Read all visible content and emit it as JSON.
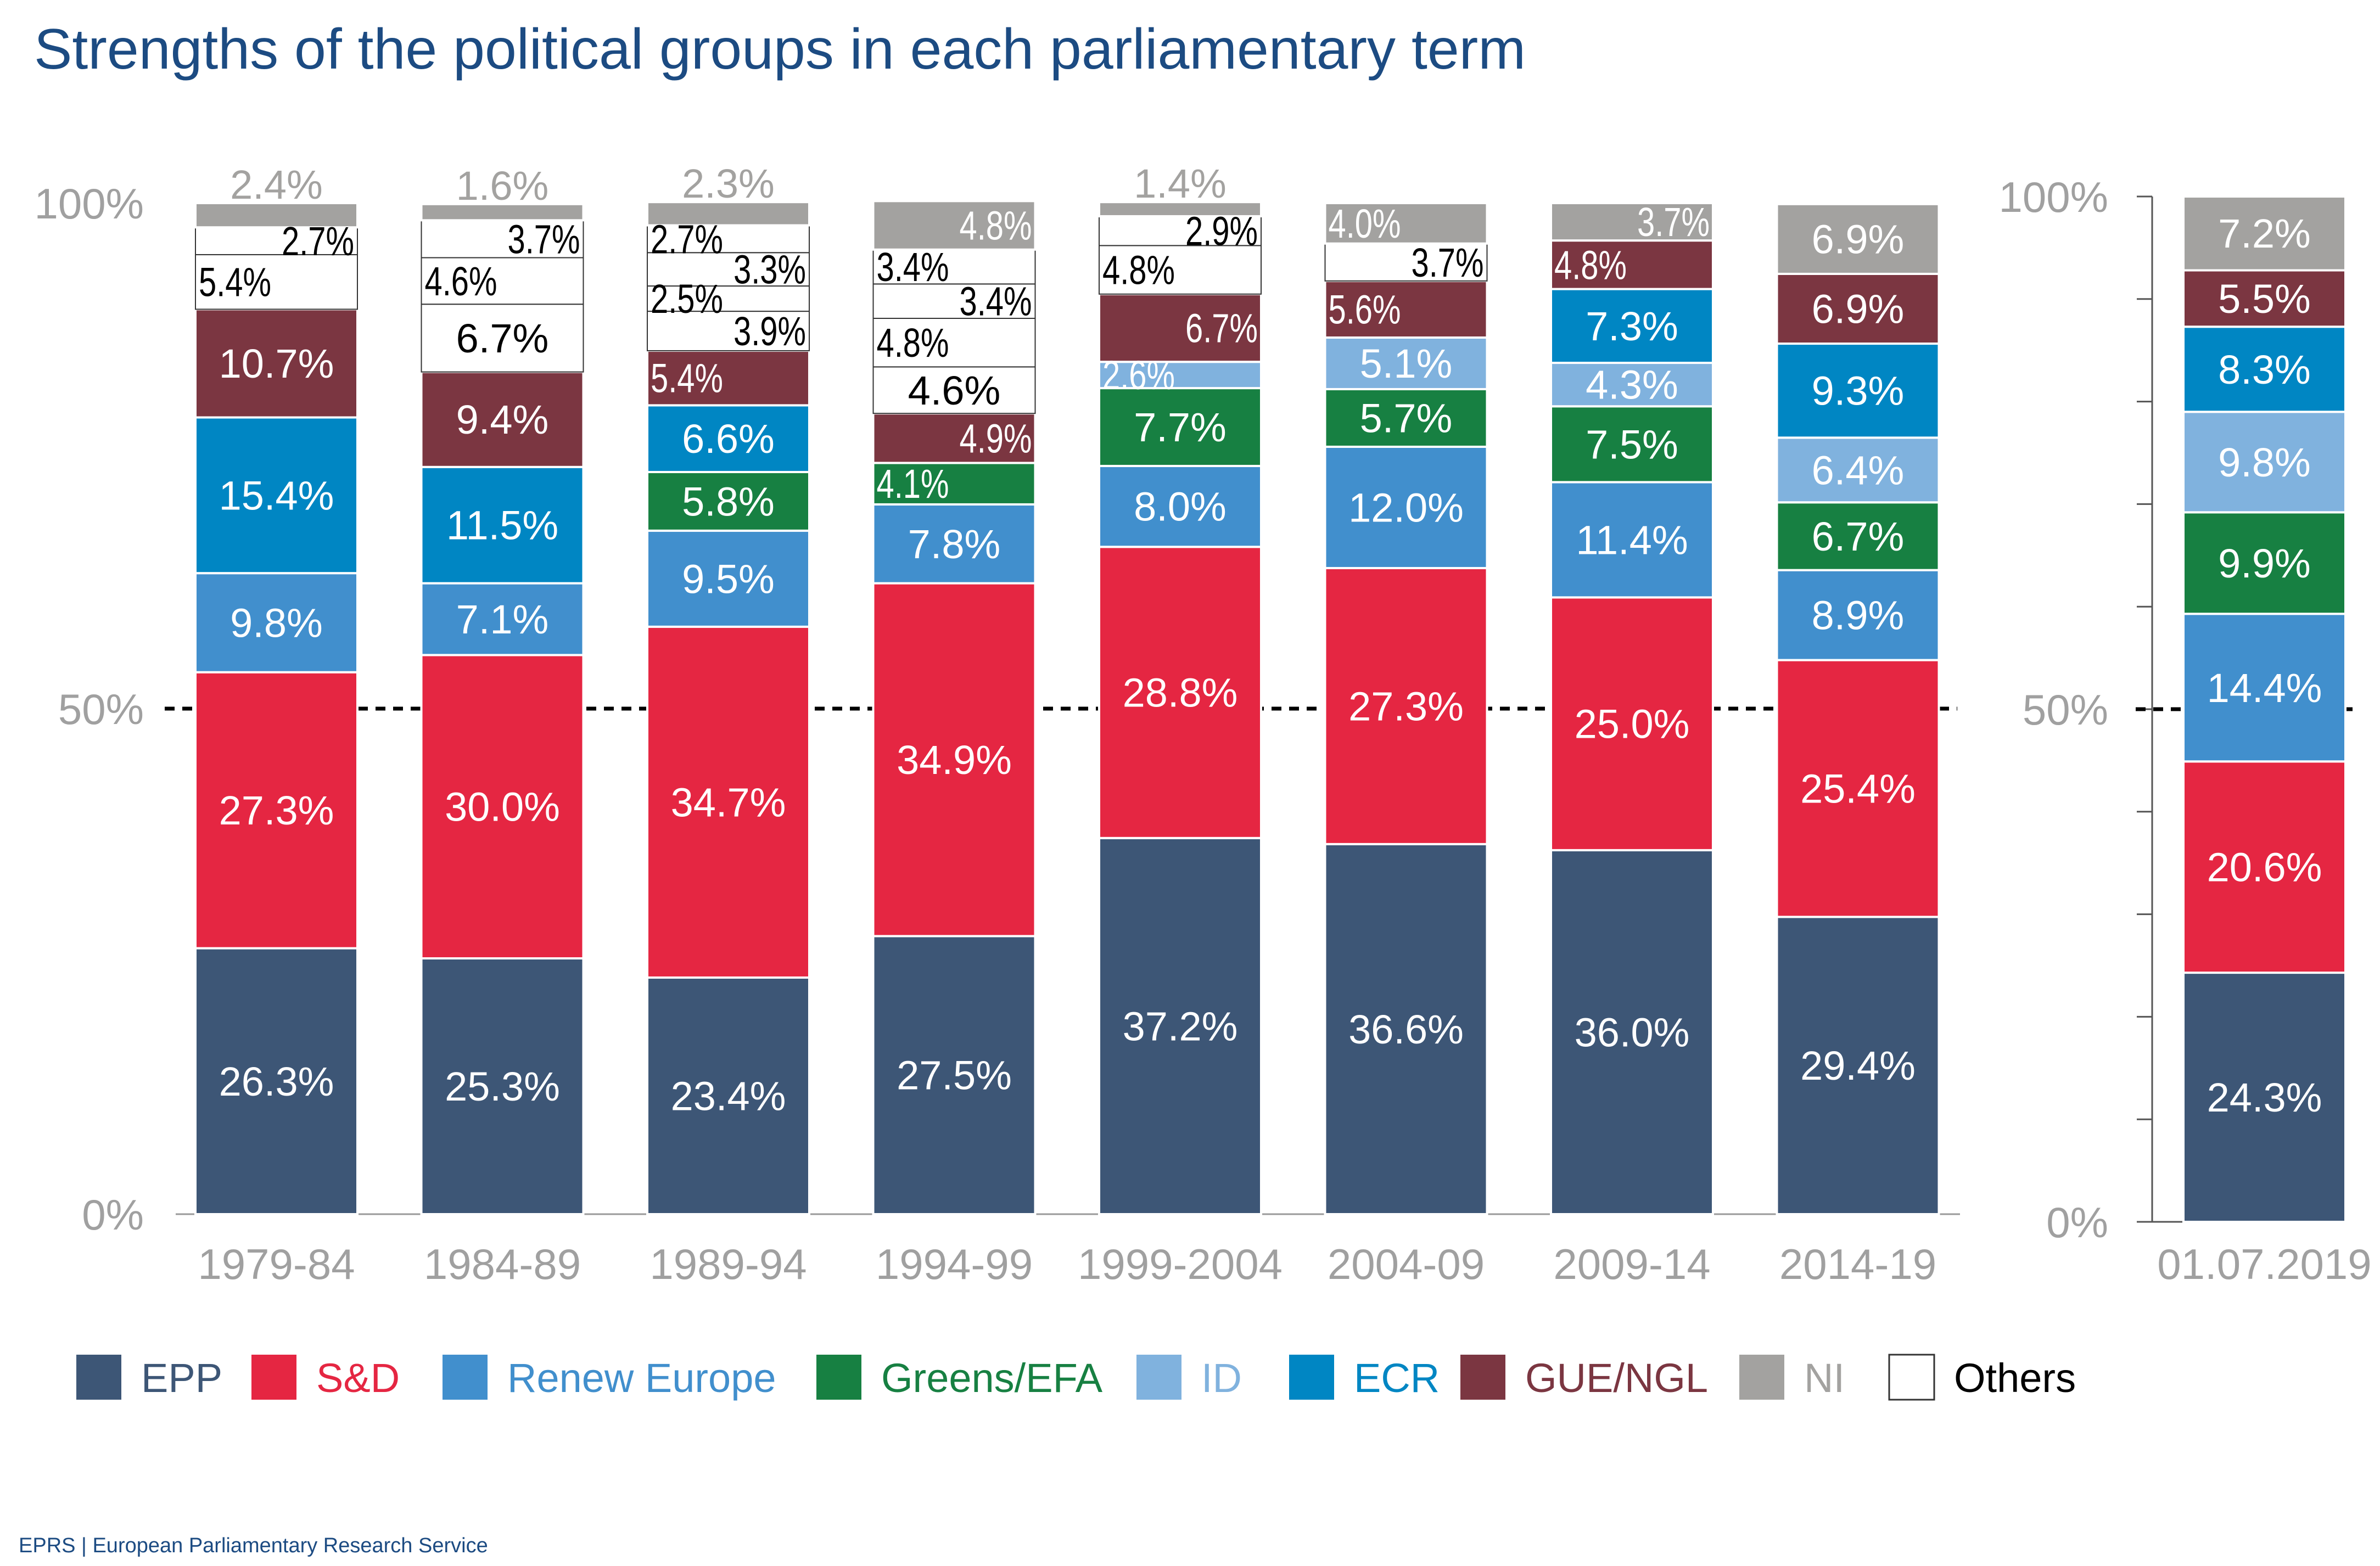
{
  "chart_data": {
    "type": "bar",
    "stacked": true,
    "title": "Strengths of the political groups in each parliamentary term",
    "footer": "EPRS | European Parliamentary Research Service",
    "ylim": [
      0,
      100
    ],
    "yticks": [
      "0%",
      "50%",
      "100%"
    ],
    "reference_line": {
      "value": 50,
      "style": "dashed"
    },
    "legend_position": "bottom",
    "colors": {
      "EPP": "#3d5676",
      "S&D": "#e52642",
      "Renew Europe": "#418fcd",
      "Greens/EFA": "#178042",
      "ID": "#80b2de",
      "ECR": "#0086c3",
      "GUE/NGL": "#7b3641",
      "NI": "#a3a2a0",
      "Others": "#ffffff"
    },
    "legend": [
      "EPP",
      "S&D",
      "Renew Europe",
      "Greens/EFA",
      "ID",
      "ECR",
      "GUE/NGL",
      "NI",
      "Others"
    ],
    "categories": [
      "1979-84",
      "1984-89",
      "1989-94",
      "1994-99",
      "1999-2004",
      "2004-09",
      "2009-14",
      "2014-19",
      "01.07.2019"
    ],
    "bars": [
      {
        "term": "1979-84",
        "segments": [
          [
            "EPP",
            26.3
          ],
          [
            "S&D",
            27.3
          ],
          [
            "Renew Europe",
            9.8
          ],
          [
            "ECR",
            15.4
          ],
          [
            "GUE/NGL",
            10.7
          ],
          [
            "Others",
            5.4
          ],
          [
            "Others",
            2.7
          ],
          [
            "NI",
            2.4
          ]
        ]
      },
      {
        "term": "1984-89",
        "segments": [
          [
            "EPP",
            25.3
          ],
          [
            "S&D",
            30.0
          ],
          [
            "Renew Europe",
            7.1
          ],
          [
            "ECR",
            11.5
          ],
          [
            "GUE/NGL",
            9.4
          ],
          [
            "Others",
            6.7
          ],
          [
            "Others",
            4.6
          ],
          [
            "Others",
            3.7
          ],
          [
            "NI",
            1.6
          ]
        ]
      },
      {
        "term": "1989-94",
        "segments": [
          [
            "EPP",
            23.4
          ],
          [
            "S&D",
            34.7
          ],
          [
            "Renew Europe",
            9.5
          ],
          [
            "Greens/EFA",
            5.8
          ],
          [
            "ECR",
            6.6
          ],
          [
            "GUE/NGL",
            5.4
          ],
          [
            "Others",
            3.9
          ],
          [
            "Others",
            2.5
          ],
          [
            "Others",
            3.3
          ],
          [
            "Others",
            2.7
          ],
          [
            "NI",
            2.3
          ]
        ]
      },
      {
        "term": "1994-99",
        "segments": [
          [
            "EPP",
            27.5
          ],
          [
            "S&D",
            34.9
          ],
          [
            "Renew Europe",
            7.8
          ],
          [
            "Greens/EFA",
            4.1
          ],
          [
            "GUE/NGL",
            4.9
          ],
          [
            "Others",
            4.6
          ],
          [
            "Others",
            4.8
          ],
          [
            "Others",
            3.4
          ],
          [
            "Others",
            3.4
          ],
          [
            "NI",
            4.8
          ]
        ]
      },
      {
        "term": "1999-2004",
        "segments": [
          [
            "EPP",
            37.2
          ],
          [
            "S&D",
            28.8
          ],
          [
            "Renew Europe",
            8.0
          ],
          [
            "Greens/EFA",
            7.7
          ],
          [
            "ID",
            2.6
          ],
          [
            "GUE/NGL",
            6.7
          ],
          [
            "Others",
            4.8
          ],
          [
            "Others",
            2.9
          ],
          [
            "NI",
            1.4
          ]
        ]
      },
      {
        "term": "2004-09",
        "segments": [
          [
            "EPP",
            36.6
          ],
          [
            "S&D",
            27.3
          ],
          [
            "Renew Europe",
            12.0
          ],
          [
            "Greens/EFA",
            5.7
          ],
          [
            "ID",
            5.1
          ],
          [
            "GUE/NGL",
            5.6
          ],
          [
            "Others",
            3.7
          ],
          [
            "NI",
            4.0
          ]
        ]
      },
      {
        "term": "2009-14",
        "segments": [
          [
            "EPP",
            36.0
          ],
          [
            "S&D",
            25.0
          ],
          [
            "Renew Europe",
            11.4
          ],
          [
            "Greens/EFA",
            7.5
          ],
          [
            "ID",
            4.3
          ],
          [
            "ECR",
            7.3
          ],
          [
            "GUE/NGL",
            4.8
          ],
          [
            "NI",
            3.7
          ]
        ]
      },
      {
        "term": "2014-19",
        "segments": [
          [
            "EPP",
            29.4
          ],
          [
            "S&D",
            25.4
          ],
          [
            "Renew Europe",
            8.9
          ],
          [
            "Greens/EFA",
            6.7
          ],
          [
            "ID",
            6.4
          ],
          [
            "ECR",
            9.3
          ],
          [
            "GUE/NGL",
            6.9
          ],
          [
            "NI",
            6.9
          ]
        ]
      },
      {
        "term": "01.07.2019",
        "segments": [
          [
            "EPP",
            24.3
          ],
          [
            "S&D",
            20.6
          ],
          [
            "Renew Europe",
            14.4
          ],
          [
            "Greens/EFA",
            9.9
          ],
          [
            "ID",
            9.8
          ],
          [
            "ECR",
            8.3
          ],
          [
            "GUE/NGL",
            5.5
          ],
          [
            "NI",
            7.2
          ]
        ]
      }
    ]
  }
}
